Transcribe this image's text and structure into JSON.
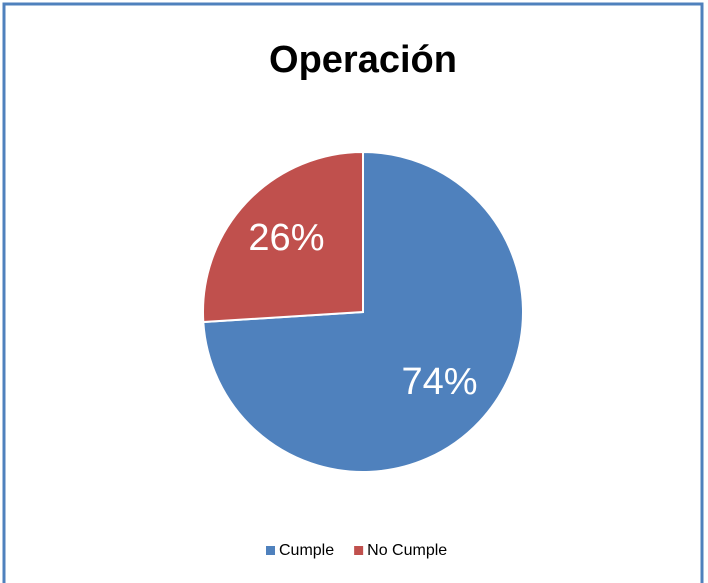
{
  "chart_data": {
    "type": "pie",
    "title": "Operación",
    "categories": [
      "Cumple",
      "No Cumple"
    ],
    "values": [
      74,
      26
    ],
    "value_labels": [
      "74%",
      "26%"
    ],
    "colors": [
      "#4f81bd",
      "#c0504d"
    ],
    "legend": "bottom"
  }
}
